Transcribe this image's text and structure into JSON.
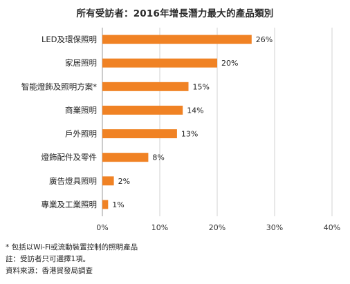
{
  "chart_data": {
    "type": "bar",
    "orientation": "horizontal",
    "title": "所有受訪者：2016年增長潛力最大的產品類別",
    "categories": [
      "LED及環保照明",
      "家居照明",
      "智能燈飾及照明方案*",
      "商業照明",
      "戶外照明",
      "燈飾配件及零件",
      "廣告燈具照明",
      "專業及工業照明"
    ],
    "values": [
      26,
      20,
      15,
      14,
      13,
      8,
      2,
      1
    ],
    "value_labels": [
      "26%",
      "20%",
      "15%",
      "14%",
      "13%",
      "8%",
      "2%",
      "1%"
    ],
    "xlim": [
      0,
      40
    ],
    "x_ticks": [
      0,
      10,
      20,
      30,
      40
    ],
    "x_tick_labels": [
      "0%",
      "10%",
      "20%",
      "30%",
      "40%"
    ],
    "grid": true,
    "bar_color": "#f08224",
    "grid_color": "#d0d0d0"
  },
  "notes": [
    "* 包括以Wi-Fi或流動裝置控制的照明產品",
    "註：受訪者只可選擇1項。",
    "資料來源：香港貿發局調查"
  ]
}
